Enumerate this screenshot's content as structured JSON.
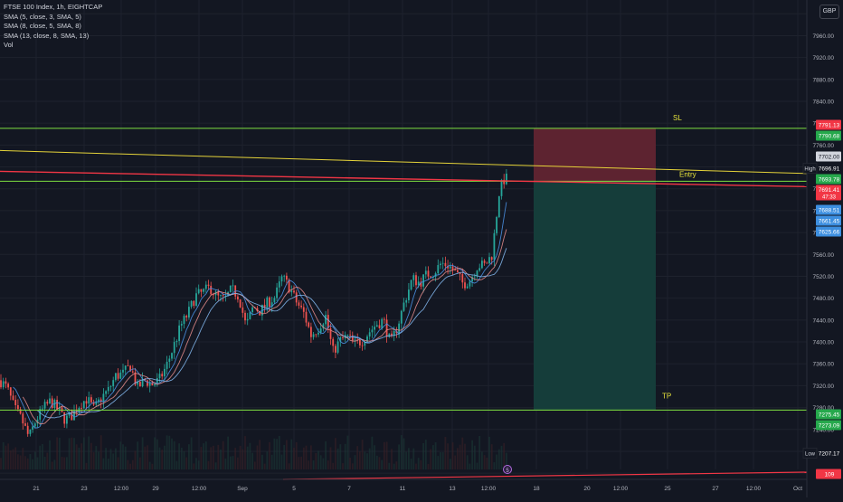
{
  "header": {
    "symbol": "FTSE 100 Index, 1h, EIGHTCAP",
    "indicators": [
      "SMA (5, close, 3, SMA, 5)",
      "SMA (8, close, 5, SMA, 8)",
      "SMA (13, close, 8, SMA, 13)",
      "Vol"
    ],
    "currency": "GBP"
  },
  "colors": {
    "background": "#131722",
    "grid": "#1e222d",
    "up": "#26a69a",
    "down": "#ef5350",
    "green_line": "#7ee040",
    "yellow_line": "#e5d33a",
    "red_line": "#f23645",
    "annotation": "#e7e43c",
    "stop_zone": "#5d2330",
    "target_zone": "#153d3a",
    "sma_colors": [
      "#4a90e2",
      "#e08a8a",
      "#7fb3e8"
    ]
  },
  "annotations": {
    "sl": "SL",
    "entry": "Entry",
    "tp": "TP"
  },
  "chart_data": {
    "type": "candlestick",
    "yaxis_ticks": [
      8000,
      7960,
      7920,
      7880,
      7840,
      7800,
      7760,
      7720,
      7680,
      7640,
      7600,
      7560,
      7520,
      7480,
      7440,
      7400,
      7360,
      7320,
      7280,
      7240,
      7200,
      7160
    ],
    "ylim": [
      7152,
      8012
    ],
    "xaxis_labels": [
      "21",
      "23",
      "12:00",
      "29",
      "12:00",
      "Sep",
      "5",
      "7",
      "11",
      "13",
      "12:00",
      "18",
      "20",
      "12:00",
      "25",
      "27",
      "12:00",
      "Oct"
    ],
    "price_tags": [
      {
        "value": "7791.13",
        "kind": "red"
      },
      {
        "value": "7790.68",
        "kind": "green"
      },
      {
        "value": "7702.00",
        "kind": "white"
      },
      {
        "label": "High",
        "value": "7696.91",
        "kind": "dark"
      },
      {
        "value": "7693.78",
        "kind": "green"
      },
      {
        "value": "7691.41",
        "sub": "47:33",
        "kind": "red"
      },
      {
        "value": "7688.51",
        "kind": "blue"
      },
      {
        "value": "7661.45",
        "kind": "blue"
      },
      {
        "value": "7625.66",
        "kind": "blue"
      },
      {
        "value": "7275.45",
        "kind": "green"
      },
      {
        "value": "7273.09",
        "kind": "green"
      },
      {
        "label": "Low",
        "value": "7207.17",
        "kind": "dark"
      },
      {
        "value": "109",
        "kind": "red"
      }
    ],
    "levels": {
      "sl": 7790.68,
      "entry": 7693.78,
      "tp": 7275.45
    },
    "price_path": [
      [
        0,
        7330
      ],
      [
        8,
        7315
      ],
      [
        16,
        7278
      ],
      [
        24,
        7258
      ],
      [
        32,
        7225
      ],
      [
        40,
        7258
      ],
      [
        48,
        7278
      ],
      [
        56,
        7292
      ],
      [
        64,
        7276
      ],
      [
        72,
        7258
      ],
      [
        80,
        7266
      ],
      [
        88,
        7286
      ],
      [
        96,
        7296
      ],
      [
        104,
        7276
      ],
      [
        112,
        7298
      ],
      [
        120,
        7312
      ],
      [
        128,
        7338
      ],
      [
        136,
        7342
      ],
      [
        144,
        7356
      ],
      [
        152,
        7316
      ],
      [
        160,
        7330
      ],
      [
        168,
        7322
      ],
      [
        176,
        7330
      ],
      [
        184,
        7356
      ],
      [
        192,
        7392
      ],
      [
        200,
        7430
      ],
      [
        208,
        7452
      ],
      [
        216,
        7484
      ],
      [
        224,
        7490
      ],
      [
        232,
        7500
      ],
      [
        240,
        7482
      ],
      [
        248,
        7476
      ],
      [
        256,
        7496
      ],
      [
        264,
        7484
      ],
      [
        272,
        7428
      ],
      [
        280,
        7464
      ],
      [
        288,
        7456
      ],
      [
        296,
        7472
      ],
      [
        304,
        7482
      ],
      [
        312,
        7518
      ],
      [
        320,
        7500
      ],
      [
        328,
        7472
      ],
      [
        336,
        7452
      ],
      [
        344,
        7412
      ],
      [
        352,
        7426
      ],
      [
        360,
        7448
      ],
      [
        368,
        7382
      ],
      [
        376,
        7402
      ],
      [
        384,
        7410
      ],
      [
        392,
        7396
      ],
      [
        400,
        7402
      ],
      [
        408,
        7418
      ],
      [
        416,
        7432
      ],
      [
        424,
        7440
      ],
      [
        432,
        7396
      ],
      [
        440,
        7432
      ],
      [
        448,
        7478
      ],
      [
        456,
        7516
      ],
      [
        464,
        7508
      ],
      [
        472,
        7524
      ],
      [
        480,
        7528
      ],
      [
        488,
        7544
      ],
      [
        496,
        7540
      ],
      [
        504,
        7526
      ],
      [
        512,
        7506
      ],
      [
        520,
        7514
      ],
      [
        528,
        7540
      ],
      [
        536,
        7540
      ],
      [
        544,
        7560
      ],
      [
        552,
        7676
      ],
      [
        558,
        7700
      ],
      [
        562,
        7696
      ]
    ],
    "volume_spike": "5"
  }
}
